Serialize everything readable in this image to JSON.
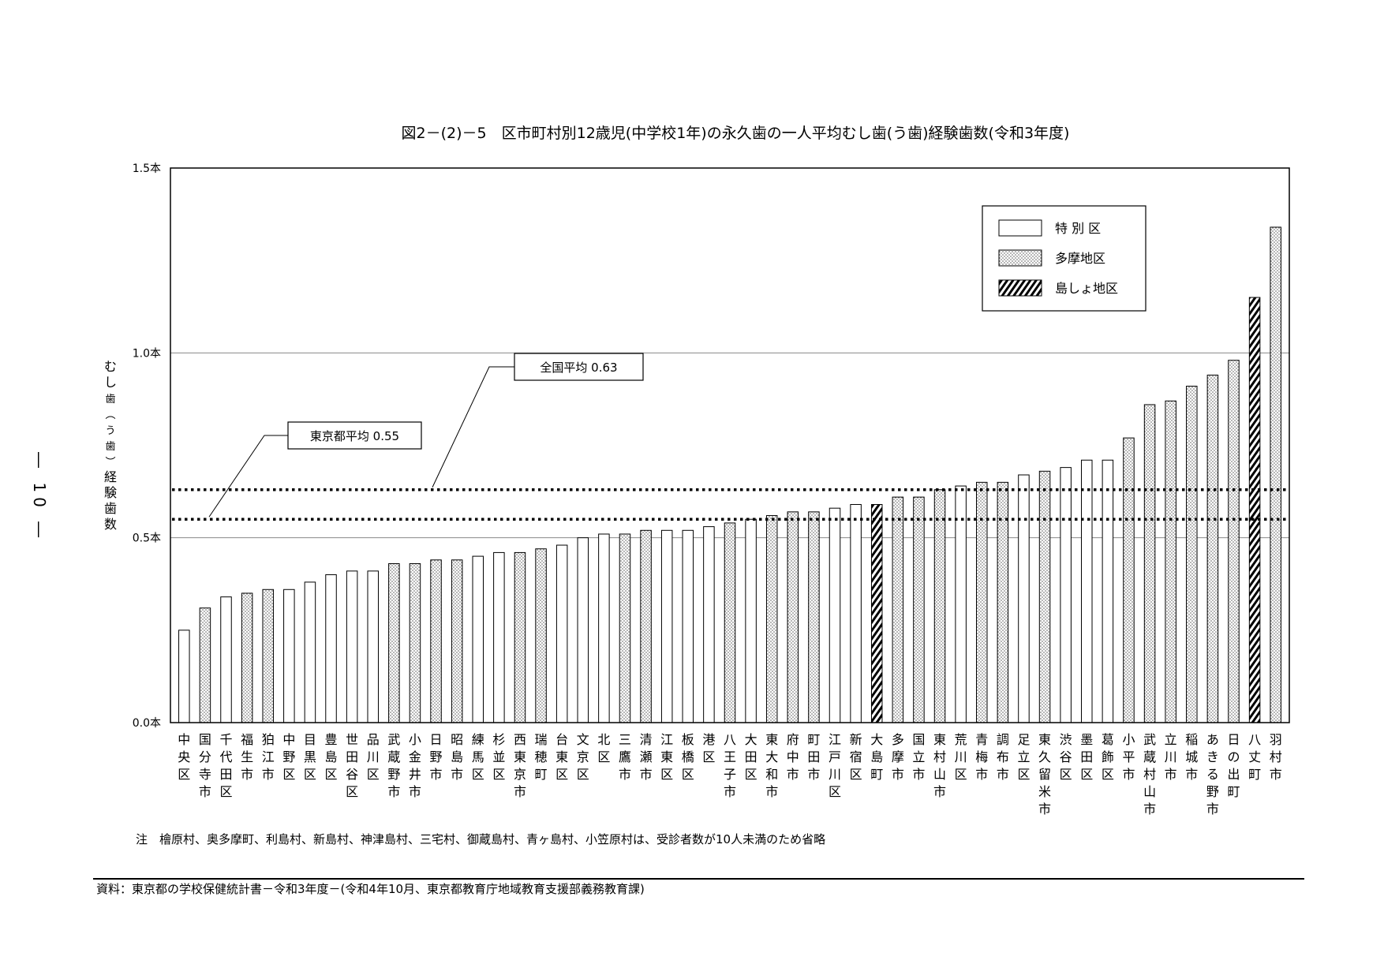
{
  "page_number": "― 10 ―",
  "note": "注　檜原村、奥多摩町、利島村、新島村、神津島村、三宅村、御蔵島村、青ヶ島村、小笠原村は、受診者数が10人未満のため省略",
  "source": "資料：東京都の学校保健統計書－令和3年度－(令和4年10月、東京都教育庁地域教育支援部義務教育課)",
  "colors": {
    "axis": "#000000",
    "grid": "#888888",
    "bar_stroke": "#000000",
    "bar_fill": "#ffffff",
    "dot": "#555555"
  },
  "chart_data": {
    "type": "bar",
    "title": "図2－(2)－5　区市町村別12歳児(中学校1年)の永久歯の一人平均むし歯(う歯)経験歯数(令和3年度)",
    "ylabel": "むし歯(う歯)経験歯数",
    "ylim": [
      0,
      1.5
    ],
    "yticks": [
      {
        "value": 0.0,
        "label": "0.0本"
      },
      {
        "value": 0.5,
        "label": "0.5本"
      },
      {
        "value": 1.0,
        "label": "1.0本"
      },
      {
        "value": 1.5,
        "label": "1.5本"
      }
    ],
    "grid": true,
    "legend_position": "top-right",
    "legend": [
      {
        "key": "ward",
        "label": "特 別 区",
        "pattern": "blank"
      },
      {
        "key": "tama",
        "label": "多摩地区",
        "pattern": "dots"
      },
      {
        "key": "island",
        "label": "島しょ地区",
        "pattern": "hatch"
      }
    ],
    "reference_lines": [
      {
        "label": "全国平均 0.63",
        "value": 0.63
      },
      {
        "label": "東京都平均 0.55",
        "value": 0.55
      }
    ],
    "categories": [
      "中央区",
      "国分寺市",
      "千代田区",
      "福生市",
      "狛江市",
      "中野区",
      "目黒区",
      "豊島区",
      "世田谷区",
      "品川区",
      "武蔵野市",
      "小金井市",
      "日野市",
      "昭島市",
      "練馬区",
      "杉並区",
      "西東京市",
      "瑞穂町",
      "台東区",
      "文京区",
      "北区",
      "三鷹市",
      "清瀬市",
      "江東区",
      "板橋区",
      "港区",
      "八王子市",
      "大田区",
      "東大和市",
      "府中市",
      "町田市",
      "江戸川区",
      "新宿区",
      "大島町",
      "多摩市",
      "国立市",
      "東村山市",
      "荒川区",
      "青梅市",
      "調布市",
      "足立区",
      "東久留米市",
      "渋谷区",
      "墨田区",
      "葛飾区",
      "小平市",
      "武蔵村山市",
      "立川市",
      "稲城市",
      "あきる野市",
      "日の出町",
      "八丈町",
      "羽村市"
    ],
    "group": [
      "ward",
      "tama",
      "ward",
      "tama",
      "tama",
      "ward",
      "ward",
      "ward",
      "ward",
      "ward",
      "tama",
      "tama",
      "tama",
      "tama",
      "ward",
      "ward",
      "tama",
      "tama",
      "ward",
      "ward",
      "ward",
      "tama",
      "tama",
      "ward",
      "ward",
      "ward",
      "tama",
      "ward",
      "tama",
      "tama",
      "tama",
      "ward",
      "ward",
      "island",
      "tama",
      "tama",
      "tama",
      "ward",
      "tama",
      "tama",
      "ward",
      "tama",
      "ward",
      "ward",
      "ward",
      "tama",
      "tama",
      "tama",
      "tama",
      "tama",
      "tama",
      "island",
      "tama"
    ],
    "values": [
      0.25,
      0.31,
      0.34,
      0.35,
      0.36,
      0.36,
      0.38,
      0.4,
      0.41,
      0.41,
      0.43,
      0.43,
      0.44,
      0.44,
      0.45,
      0.46,
      0.46,
      0.47,
      0.48,
      0.5,
      0.51,
      0.51,
      0.52,
      0.52,
      0.52,
      0.53,
      0.54,
      0.55,
      0.56,
      0.57,
      0.57,
      0.58,
      0.59,
      0.59,
      0.61,
      0.61,
      0.63,
      0.64,
      0.65,
      0.65,
      0.67,
      0.68,
      0.69,
      0.71,
      0.71,
      0.77,
      0.86,
      0.87,
      0.91,
      0.94,
      0.98,
      1.15,
      1.34
    ]
  }
}
